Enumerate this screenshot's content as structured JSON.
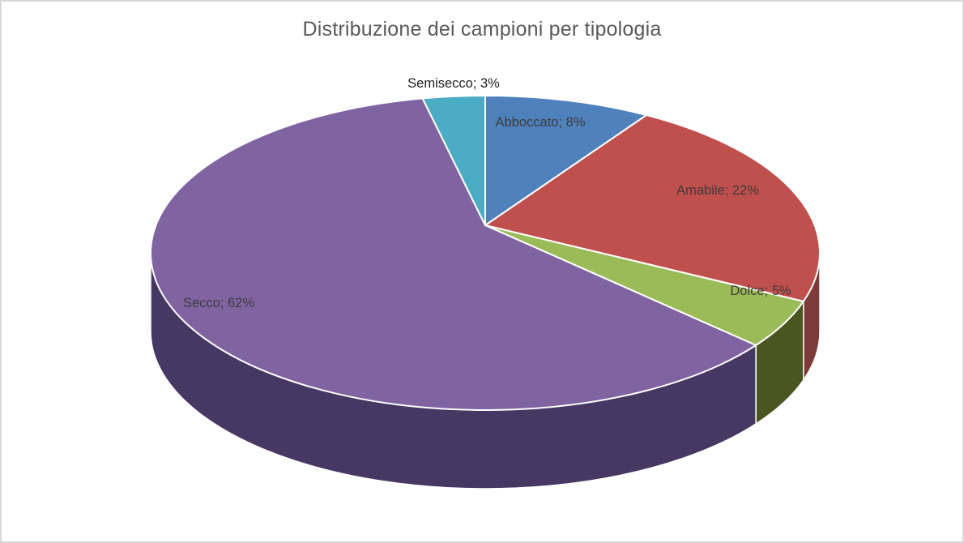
{
  "window": {
    "background_color": "#FFFFFF",
    "border_color": "#D8D8D8"
  },
  "chart_data": {
    "type": "pie",
    "style": "3d",
    "title": "Distribuzione dei campioni per tipologia",
    "title_color": "#595959",
    "legend_position": "none",
    "label_format": "{label}; {value}%",
    "start_angle_deg": 0,
    "direction": "clockwise",
    "categories": [
      "Abboccato",
      "Amabile",
      "Dolce",
      "Secco",
      "Semisecco"
    ],
    "values": [
      8,
      22,
      5,
      62,
      3
    ],
    "slices": [
      {
        "id": "abboccato",
        "label": "Abboccato",
        "value": 8,
        "color": "#4F81BD",
        "side_color": "#2F4D71",
        "label_color": "#3C3C3C",
        "label_placement": "inside"
      },
      {
        "id": "amabile",
        "label": "Amabile",
        "value": 22,
        "color": "#C0504D",
        "side_color": "#7C3A38",
        "label_color": "#3C3C3C",
        "label_placement": "inside"
      },
      {
        "id": "dolce",
        "label": "Dolce",
        "value": 5,
        "color": "#9BBB59",
        "side_color": "#4A5621",
        "label_color": "#3C3C3C",
        "label_placement": "inside"
      },
      {
        "id": "secco",
        "label": "Secco",
        "value": 62,
        "color": "#8064A2",
        "side_color": "#473863",
        "label_color": "#3C3C3C",
        "label_placement": "inside"
      },
      {
        "id": "semisecco",
        "label": "Semisecco",
        "value": 3,
        "color": "#4BACC6",
        "side_color": "#2D6876",
        "label_color": "#1F1F1F",
        "label_placement": "outside"
      }
    ]
  }
}
